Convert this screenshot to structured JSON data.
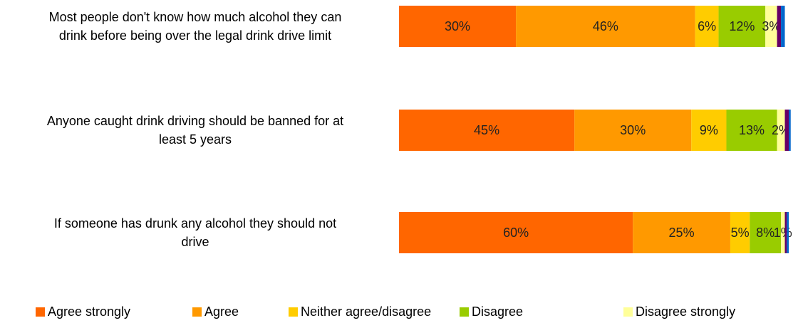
{
  "chart_data": {
    "type": "bar",
    "orientation": "horizontal",
    "stacked": true,
    "categories": [
      "Most people don't know how much alcohol they can drink before being over the legal drink drive limit",
      "Anyone caught drink driving should be banned for at least 5 years",
      "If someone has drunk any alcohol they should not drive"
    ],
    "category_lines": [
      [
        "Most people don't know how much alcohol they can",
        "drink before being over the legal drink drive limit"
      ],
      [
        "Anyone caught drink driving should be banned for at",
        "least 5 years"
      ],
      [
        "If someone has drunk any alcohol they should not",
        "drive"
      ]
    ],
    "series": [
      {
        "name": "Agree strongly",
        "values": [
          30,
          45,
          60
        ],
        "color": "#FF6600"
      },
      {
        "name": "Agree",
        "values": [
          46,
          30,
          25
        ],
        "color": "#FF9900"
      },
      {
        "name": "Neither agree/disagree",
        "values": [
          6,
          9,
          5
        ],
        "color": "#FFCC00"
      },
      {
        "name": "Disagree",
        "values": [
          12,
          13,
          8
        ],
        "color": "#99CC00"
      },
      {
        "name": "Disagree strongly",
        "values": [
          3,
          2,
          1
        ],
        "color": "#FFFF99"
      },
      {
        "name": "",
        "values": [
          1,
          1,
          0.5
        ],
        "color": "#660066"
      },
      {
        "name": "",
        "values": [
          1,
          0.5,
          0.5
        ],
        "color": "#0066CC"
      }
    ],
    "xlim": [
      0,
      100
    ],
    "value_suffix": "%",
    "grid": false,
    "legend_position": "bottom"
  }
}
